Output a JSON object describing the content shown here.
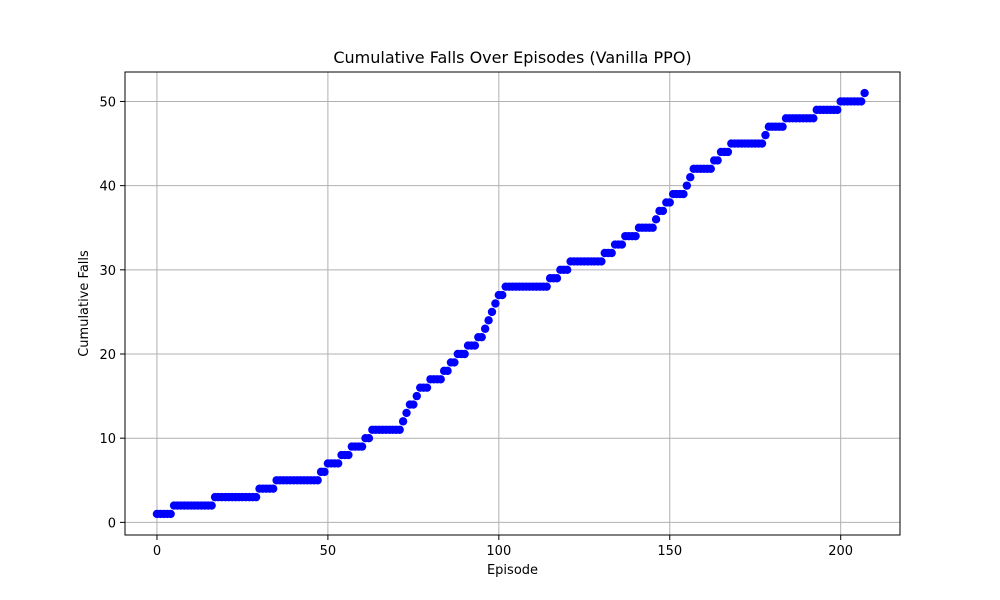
{
  "chart_data": {
    "type": "scatter",
    "title": "Cumulative Falls Over Episodes (Vanilla PPO)",
    "xlabel": "Episode",
    "ylabel": "Cumulative Falls",
    "xlim": [
      -9.35,
      217.35
    ],
    "ylim": [
      -1.5,
      53.5
    ],
    "xticks": [
      0,
      50,
      100,
      150,
      200
    ],
    "yticks": [
      0,
      10,
      20,
      30,
      40,
      50
    ],
    "grid": true,
    "marker_color": "#0000ff",
    "steps": [
      [
        0,
        1
      ],
      [
        5,
        2
      ],
      [
        17,
        3
      ],
      [
        30,
        4
      ],
      [
        35,
        5
      ],
      [
        48,
        6
      ],
      [
        50,
        7
      ],
      [
        54,
        8
      ],
      [
        57,
        9
      ],
      [
        61,
        10
      ],
      [
        63,
        11
      ],
      [
        72,
        12
      ],
      [
        73,
        13
      ],
      [
        74,
        14
      ],
      [
        76,
        15
      ],
      [
        77,
        16
      ],
      [
        80,
        17
      ],
      [
        84,
        18
      ],
      [
        86,
        19
      ],
      [
        88,
        20
      ],
      [
        91,
        21
      ],
      [
        94,
        22
      ],
      [
        96,
        23
      ],
      [
        97,
        24
      ],
      [
        98,
        25
      ],
      [
        99,
        26
      ],
      [
        100,
        27
      ],
      [
        102,
        28
      ],
      [
        115,
        29
      ],
      [
        118,
        30
      ],
      [
        121,
        31
      ],
      [
        131,
        32
      ],
      [
        134,
        33
      ],
      [
        137,
        34
      ],
      [
        141,
        35
      ],
      [
        146,
        36
      ],
      [
        147,
        37
      ],
      [
        149,
        38
      ],
      [
        151,
        39
      ],
      [
        155,
        40
      ],
      [
        156,
        41
      ],
      [
        157,
        42
      ],
      [
        163,
        43
      ],
      [
        165,
        44
      ],
      [
        168,
        45
      ],
      [
        178,
        46
      ],
      [
        179,
        47
      ],
      [
        184,
        48
      ],
      [
        193,
        49
      ],
      [
        200,
        50
      ],
      [
        207,
        51
      ]
    ],
    "x_end": 207
  }
}
